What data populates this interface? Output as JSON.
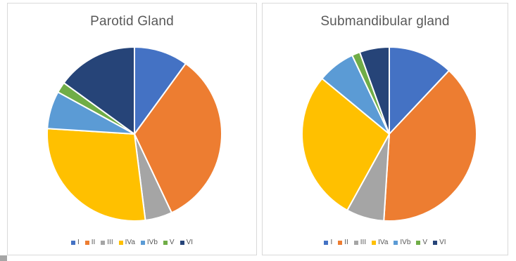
{
  "chart_data": [
    {
      "type": "pie",
      "title": "Parotid Gland",
      "categories": [
        "I",
        "II",
        "III",
        "IVa",
        "IVb",
        "V",
        "VI"
      ],
      "values": [
        10,
        33,
        5,
        28,
        7,
        2,
        15
      ],
      "colors": [
        "#4472C4",
        "#ED7D31",
        "#A5A5A5",
        "#FFC000",
        "#5B9BD5",
        "#70AD47",
        "#264478"
      ],
      "legend_position": "bottom",
      "start_angle_deg": 0,
      "direction": "clockwise"
    },
    {
      "type": "pie",
      "title": "Submandibular gland",
      "categories": [
        "I",
        "II",
        "III",
        "IVa",
        "IVb",
        "V",
        "VI"
      ],
      "values": [
        12,
        39,
        7,
        28,
        7,
        1.5,
        5.5
      ],
      "colors": [
        "#4472C4",
        "#ED7D31",
        "#A5A5A5",
        "#FFC000",
        "#5B9BD5",
        "#70AD47",
        "#264478"
      ],
      "legend_position": "bottom",
      "start_angle_deg": 0,
      "direction": "clockwise"
    }
  ]
}
